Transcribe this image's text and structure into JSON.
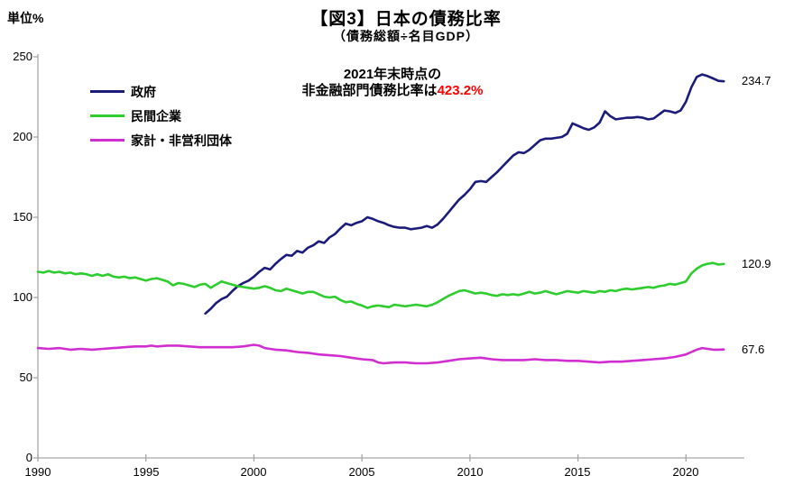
{
  "header": {
    "unit_label": "単位%",
    "title": "【図3】日本の債務比率",
    "subtitle": "（債務総額÷名目GDP）"
  },
  "annotation": {
    "line1": "2021年末時点の",
    "line2_prefix": "非金融部門債務比率は",
    "line2_value": "423.2%",
    "value_color": "#ff0000"
  },
  "chart_data": {
    "type": "line",
    "title": "【図3】日本の債務比率",
    "subtitle": "（債務総額÷名目GDP）",
    "ylabel": "単位%",
    "xlabel": "",
    "ylim": [
      0,
      250
    ],
    "xlim": [
      1990,
      2022.7
    ],
    "yticks": [
      250,
      200,
      150,
      100,
      50,
      0
    ],
    "xticks": [
      1990,
      1995,
      2000,
      2005,
      2010,
      2015,
      2020
    ],
    "grid": false,
    "legend_position": "upper-left-inside",
    "axis_color": "#a6a6a6",
    "series": [
      {
        "name": "政府",
        "color": "#1b1b7a",
        "end_label": "234.7",
        "end_value": 234.7,
        "points": [
          [
            1997.75,
            90
          ],
          [
            1998.0,
            93
          ],
          [
            1998.25,
            96.5
          ],
          [
            1998.5,
            99
          ],
          [
            1998.75,
            100.5
          ],
          [
            1999.0,
            104
          ],
          [
            1999.25,
            107
          ],
          [
            1999.5,
            109
          ],
          [
            1999.75,
            110.5
          ],
          [
            2000.0,
            113
          ],
          [
            2000.25,
            116
          ],
          [
            2000.5,
            118.5
          ],
          [
            2000.75,
            117.5
          ],
          [
            2001.0,
            121
          ],
          [
            2001.25,
            124
          ],
          [
            2001.5,
            126.5
          ],
          [
            2001.75,
            126
          ],
          [
            2002.0,
            129
          ],
          [
            2002.25,
            128
          ],
          [
            2002.5,
            131
          ],
          [
            2002.75,
            132.5
          ],
          [
            2003.0,
            135
          ],
          [
            2003.25,
            134
          ],
          [
            2003.5,
            137.5
          ],
          [
            2003.75,
            139.5
          ],
          [
            2004.0,
            143
          ],
          [
            2004.25,
            146
          ],
          [
            2004.5,
            145
          ],
          [
            2004.75,
            146.5
          ],
          [
            2005.0,
            147.5
          ],
          [
            2005.25,
            150
          ],
          [
            2005.5,
            149
          ],
          [
            2005.75,
            147.5
          ],
          [
            2006.0,
            146.5
          ],
          [
            2006.25,
            145
          ],
          [
            2006.5,
            144
          ],
          [
            2006.75,
            143.5
          ],
          [
            2007.0,
            143.5
          ],
          [
            2007.25,
            142.5
          ],
          [
            2007.5,
            143
          ],
          [
            2007.75,
            143.5
          ],
          [
            2008.0,
            144.5
          ],
          [
            2008.25,
            143.5
          ],
          [
            2008.5,
            145.5
          ],
          [
            2008.75,
            149
          ],
          [
            2009.0,
            153
          ],
          [
            2009.25,
            157
          ],
          [
            2009.5,
            161
          ],
          [
            2009.75,
            164
          ],
          [
            2010.0,
            167.5
          ],
          [
            2010.25,
            172
          ],
          [
            2010.5,
            172.5
          ],
          [
            2010.75,
            172
          ],
          [
            2011.0,
            175
          ],
          [
            2011.25,
            178
          ],
          [
            2011.5,
            181.5
          ],
          [
            2011.75,
            185
          ],
          [
            2012.0,
            188.5
          ],
          [
            2012.25,
            190.5
          ],
          [
            2012.5,
            190
          ],
          [
            2012.75,
            192
          ],
          [
            2013.0,
            195
          ],
          [
            2013.25,
            198
          ],
          [
            2013.5,
            199
          ],
          [
            2013.75,
            199
          ],
          [
            2014.0,
            199.5
          ],
          [
            2014.25,
            200
          ],
          [
            2014.5,
            202
          ],
          [
            2014.75,
            208.5
          ],
          [
            2015.0,
            207
          ],
          [
            2015.25,
            205.5
          ],
          [
            2015.5,
            204.5
          ],
          [
            2015.75,
            206
          ],
          [
            2016.0,
            209
          ],
          [
            2016.25,
            216
          ],
          [
            2016.5,
            213
          ],
          [
            2016.75,
            211
          ],
          [
            2017.0,
            211.5
          ],
          [
            2017.25,
            212
          ],
          [
            2017.5,
            212
          ],
          [
            2017.75,
            212.5
          ],
          [
            2018.0,
            212
          ],
          [
            2018.25,
            211
          ],
          [
            2018.5,
            211.5
          ],
          [
            2018.75,
            214
          ],
          [
            2019.0,
            216.5
          ],
          [
            2019.25,
            216
          ],
          [
            2019.5,
            215
          ],
          [
            2019.75,
            216.5
          ],
          [
            2020.0,
            222
          ],
          [
            2020.25,
            231
          ],
          [
            2020.5,
            237.5
          ],
          [
            2020.75,
            239
          ],
          [
            2021.0,
            238
          ],
          [
            2021.25,
            236.5
          ],
          [
            2021.5,
            235
          ],
          [
            2021.75,
            234.7
          ]
        ]
      },
      {
        "name": "民間企業",
        "color": "#2ecc2e",
        "end_label": "120.9",
        "end_value": 120.9,
        "points": [
          [
            1990.0,
            116
          ],
          [
            1990.25,
            115.5
          ],
          [
            1990.5,
            116.5
          ],
          [
            1990.75,
            115.5
          ],
          [
            1991.0,
            116
          ],
          [
            1991.25,
            115
          ],
          [
            1991.5,
            115.5
          ],
          [
            1991.75,
            114.5
          ],
          [
            1992.0,
            115
          ],
          [
            1992.25,
            114.5
          ],
          [
            1992.5,
            113.5
          ],
          [
            1992.75,
            114.5
          ],
          [
            1993.0,
            113.5
          ],
          [
            1993.25,
            114.5
          ],
          [
            1993.5,
            113
          ],
          [
            1993.75,
            112.5
          ],
          [
            1994.0,
            113
          ],
          [
            1994.25,
            112
          ],
          [
            1994.5,
            112.5
          ],
          [
            1994.75,
            111.5
          ],
          [
            1995.0,
            110.5
          ],
          [
            1995.25,
            111.5
          ],
          [
            1995.5,
            112
          ],
          [
            1995.75,
            111
          ],
          [
            1996.0,
            110
          ],
          [
            1996.25,
            107.5
          ],
          [
            1996.5,
            109
          ],
          [
            1996.75,
            108.5
          ],
          [
            1997.0,
            107.5
          ],
          [
            1997.25,
            106.5
          ],
          [
            1997.5,
            108
          ],
          [
            1997.75,
            108.5
          ],
          [
            1998.0,
            106
          ],
          [
            1998.25,
            108
          ],
          [
            1998.5,
            110
          ],
          [
            1998.75,
            109
          ],
          [
            1999.0,
            108
          ],
          [
            1999.25,
            107
          ],
          [
            1999.5,
            106.5
          ],
          [
            1999.75,
            106
          ],
          [
            2000.0,
            105.5
          ],
          [
            2000.25,
            106
          ],
          [
            2000.5,
            107
          ],
          [
            2000.75,
            106
          ],
          [
            2001.0,
            104.5
          ],
          [
            2001.25,
            104
          ],
          [
            2001.5,
            105.5
          ],
          [
            2001.75,
            104.5
          ],
          [
            2002.0,
            103.5
          ],
          [
            2002.25,
            102.5
          ],
          [
            2002.5,
            103.5
          ],
          [
            2002.75,
            103.5
          ],
          [
            2003.0,
            102
          ],
          [
            2003.25,
            100.5
          ],
          [
            2003.5,
            100
          ],
          [
            2003.75,
            100.5
          ],
          [
            2004.0,
            98.5
          ],
          [
            2004.25,
            97
          ],
          [
            2004.5,
            97.5
          ],
          [
            2004.75,
            96
          ],
          [
            2005.0,
            95
          ],
          [
            2005.25,
            93.5
          ],
          [
            2005.5,
            94.5
          ],
          [
            2005.75,
            95
          ],
          [
            2006.0,
            94.5
          ],
          [
            2006.25,
            94
          ],
          [
            2006.5,
            95.5
          ],
          [
            2006.75,
            95
          ],
          [
            2007.0,
            94.5
          ],
          [
            2007.25,
            95
          ],
          [
            2007.5,
            95.5
          ],
          [
            2007.75,
            95
          ],
          [
            2008.0,
            94.5
          ],
          [
            2008.25,
            95.5
          ],
          [
            2008.5,
            97
          ],
          [
            2008.75,
            99
          ],
          [
            2009.0,
            101
          ],
          [
            2009.25,
            102.5
          ],
          [
            2009.5,
            104
          ],
          [
            2009.75,
            104.5
          ],
          [
            2010.0,
            103.5
          ],
          [
            2010.25,
            102.5
          ],
          [
            2010.5,
            103
          ],
          [
            2010.75,
            102.5
          ],
          [
            2011.0,
            101.5
          ],
          [
            2011.25,
            101
          ],
          [
            2011.5,
            102
          ],
          [
            2011.75,
            101.5
          ],
          [
            2012.0,
            102
          ],
          [
            2012.25,
            101.5
          ],
          [
            2012.5,
            102.5
          ],
          [
            2012.75,
            103.5
          ],
          [
            2013.0,
            102.5
          ],
          [
            2013.25,
            103
          ],
          [
            2013.5,
            104
          ],
          [
            2013.75,
            103
          ],
          [
            2014.0,
            102
          ],
          [
            2014.25,
            103
          ],
          [
            2014.5,
            104
          ],
          [
            2014.75,
            103.5
          ],
          [
            2015.0,
            103
          ],
          [
            2015.25,
            104
          ],
          [
            2015.5,
            103.5
          ],
          [
            2015.75,
            103
          ],
          [
            2016.0,
            104
          ],
          [
            2016.25,
            103.5
          ],
          [
            2016.5,
            104.5
          ],
          [
            2016.75,
            104
          ],
          [
            2017.0,
            105
          ],
          [
            2017.25,
            105.5
          ],
          [
            2017.5,
            105
          ],
          [
            2017.75,
            105.5
          ],
          [
            2018.0,
            106
          ],
          [
            2018.25,
            106.5
          ],
          [
            2018.5,
            106
          ],
          [
            2018.75,
            107
          ],
          [
            2019.0,
            107.5
          ],
          [
            2019.25,
            108.5
          ],
          [
            2019.5,
            108
          ],
          [
            2019.75,
            109
          ],
          [
            2020.0,
            110
          ],
          [
            2020.25,
            115
          ],
          [
            2020.5,
            118
          ],
          [
            2020.75,
            120
          ],
          [
            2021.0,
            121
          ],
          [
            2021.25,
            121.5
          ],
          [
            2021.5,
            120.5
          ],
          [
            2021.75,
            120.9
          ]
        ]
      },
      {
        "name": "家計・非営利団体",
        "color": "#d02ed0",
        "end_label": "67.6",
        "end_value": 67.6,
        "points": [
          [
            1990.0,
            68.5
          ],
          [
            1990.5,
            68
          ],
          [
            1991.0,
            68.5
          ],
          [
            1991.5,
            67.5
          ],
          [
            1992.0,
            68
          ],
          [
            1992.5,
            67.5
          ],
          [
            1993.0,
            68
          ],
          [
            1993.5,
            68.5
          ],
          [
            1994.0,
            69
          ],
          [
            1994.5,
            69.5
          ],
          [
            1995.0,
            69.5
          ],
          [
            1995.25,
            70
          ],
          [
            1995.5,
            69.5
          ],
          [
            1996.0,
            70
          ],
          [
            1996.5,
            70
          ],
          [
            1997.0,
            69.5
          ],
          [
            1997.5,
            69
          ],
          [
            1998.0,
            69
          ],
          [
            1998.5,
            69
          ],
          [
            1999.0,
            69
          ],
          [
            1999.5,
            69.5
          ],
          [
            2000.0,
            70.5
          ],
          [
            2000.25,
            70
          ],
          [
            2000.5,
            68.5
          ],
          [
            2001.0,
            67.5
          ],
          [
            2001.5,
            67
          ],
          [
            2002.0,
            66
          ],
          [
            2002.5,
            65.5
          ],
          [
            2003.0,
            64.5
          ],
          [
            2003.5,
            64
          ],
          [
            2004.0,
            63.5
          ],
          [
            2004.5,
            62.5
          ],
          [
            2005.0,
            61.5
          ],
          [
            2005.5,
            61
          ],
          [
            2005.75,
            59.5
          ],
          [
            2006.0,
            59
          ],
          [
            2006.5,
            59.5
          ],
          [
            2007.0,
            59.5
          ],
          [
            2007.5,
            59
          ],
          [
            2008.0,
            59
          ],
          [
            2008.5,
            59.5
          ],
          [
            2009.0,
            60.5
          ],
          [
            2009.5,
            61.5
          ],
          [
            2010.0,
            62
          ],
          [
            2010.5,
            62.5
          ],
          [
            2011.0,
            61.5
          ],
          [
            2011.5,
            61
          ],
          [
            2012.0,
            61
          ],
          [
            2012.5,
            61
          ],
          [
            2013.0,
            61.5
          ],
          [
            2013.5,
            61
          ],
          [
            2014.0,
            61
          ],
          [
            2014.5,
            60.5
          ],
          [
            2015.0,
            60.5
          ],
          [
            2015.5,
            60
          ],
          [
            2016.0,
            59.5
          ],
          [
            2016.5,
            60
          ],
          [
            2017.0,
            60
          ],
          [
            2017.5,
            60.5
          ],
          [
            2018.0,
            61
          ],
          [
            2018.5,
            61.5
          ],
          [
            2019.0,
            62
          ],
          [
            2019.5,
            63
          ],
          [
            2020.0,
            64.5
          ],
          [
            2020.25,
            66
          ],
          [
            2020.5,
            67.5
          ],
          [
            2020.75,
            68.5
          ],
          [
            2021.0,
            68
          ],
          [
            2021.25,
            67.5
          ],
          [
            2021.5,
            67.5
          ],
          [
            2021.75,
            67.6
          ]
        ]
      }
    ]
  }
}
